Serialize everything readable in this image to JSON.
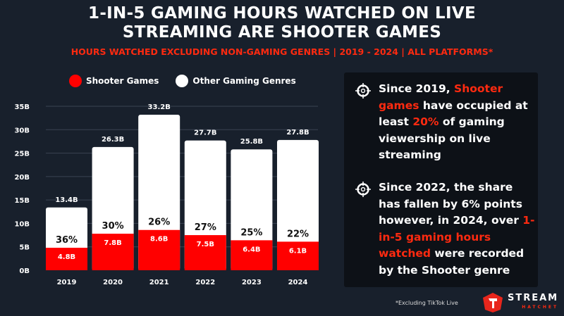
{
  "title_lines": [
    "1-IN-5 GAMING HOURS WATCHED ON LIVE",
    "STREAMING ARE SHOOTER GAMES"
  ],
  "subtitle": "HOURS WATCHED EXCLUDING NON-GAMING GENRES | 2019 - 2024 | ALL PLATFORMS*",
  "colors": {
    "shooter": "#ff0000",
    "other": "#ffffff",
    "accent": "#ff2a10",
    "background": "#18202c",
    "panel": "#0d1117"
  },
  "chart_data": {
    "type": "bar",
    "stacked": true,
    "categories": [
      "2019",
      "2020",
      "2021",
      "2022",
      "2023",
      "2024"
    ],
    "series": [
      {
        "name": "Shooter Games",
        "values": [
          4.8,
          7.8,
          8.6,
          7.5,
          6.4,
          6.1
        ],
        "labels": [
          "4.8B",
          "7.8B",
          "8.6B",
          "7.5B",
          "6.4B",
          "6.1B"
        ]
      },
      {
        "name": "Other Gaming Genres",
        "totals": [
          13.4,
          26.3,
          33.2,
          27.7,
          25.8,
          27.8
        ],
        "labels": [
          "13.4B",
          "26.3B",
          "33.2B",
          "27.7B",
          "25.8B",
          "27.8B"
        ]
      }
    ],
    "share_labels": [
      "36%",
      "30%",
      "26%",
      "27%",
      "25%",
      "22%"
    ],
    "y_ticks": [
      "0B",
      "5B",
      "10B",
      "15B",
      "20B",
      "25B",
      "30B",
      "35B"
    ],
    "ylim": [
      0,
      35
    ],
    "grid": true,
    "legend_position": "top"
  },
  "insights": [
    {
      "icon": "crosshair-icon",
      "segments": [
        {
          "t": "Since 2019, ",
          "hl": false
        },
        {
          "t": "Shooter games",
          "hl": true
        },
        {
          "t": " have occupied at least ",
          "hl": false
        },
        {
          "t": "20%",
          "hl": true
        },
        {
          "t": " of gaming viewership on live streaming",
          "hl": false
        }
      ]
    },
    {
      "icon": "crosshair-icon",
      "segments": [
        {
          "t": "Since 2022, the share has fallen by 6% points however, in 2024, over ",
          "hl": false
        },
        {
          "t": "1-in-5 gaming hours watched",
          "hl": true
        },
        {
          "t": " were recorded by the Shooter genre",
          "hl": false
        }
      ]
    }
  ],
  "footnote": "*Excluding TikTok Live",
  "logo": {
    "line1": "STREAM",
    "line2": "HATCHET"
  }
}
